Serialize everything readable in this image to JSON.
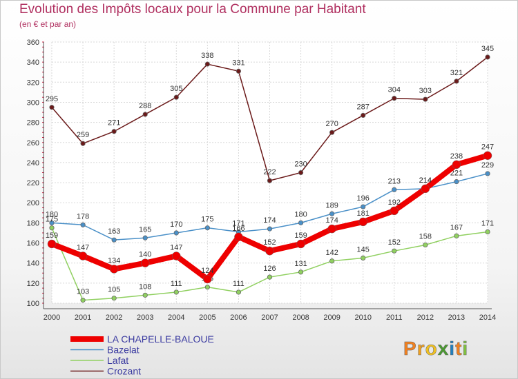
{
  "title": "Evolution des Impôts locaux pour la Commune par Habitant",
  "subtitle": "(en € et par an)",
  "brand": {
    "letters": [
      "P",
      "r",
      "o",
      "x",
      "i",
      "t",
      "i"
    ],
    "colors": [
      "#f08020",
      "#f0a020",
      "#f0c020",
      "#4a9a30",
      "#2080c0",
      "#f08020",
      "#80c040"
    ]
  },
  "chart_data": {
    "type": "line",
    "title": "Evolution des Impôts locaux pour la Commune par Habitant",
    "subtitle": "(en € et par an)",
    "xlabel": "",
    "ylabel": "",
    "categories": [
      "2000",
      "2001",
      "2002",
      "2003",
      "2004",
      "2005",
      "2006",
      "2007",
      "2008",
      "2009",
      "2010",
      "2011",
      "2012",
      "2013",
      "2014"
    ],
    "ylim": [
      100,
      360
    ],
    "yticks": [
      100,
      120,
      140,
      160,
      180,
      200,
      220,
      240,
      260,
      280,
      300,
      320,
      340,
      360
    ],
    "grid": true,
    "legend_position": "bottom-left",
    "series": [
      {
        "name": "Crozant",
        "color": "#6b1a1a",
        "values": [
          295,
          259,
          271,
          288,
          305,
          338,
          331,
          222,
          230,
          270,
          287,
          304,
          303,
          321,
          345
        ]
      },
      {
        "name": "Bazelat",
        "color": "#4a90c8",
        "values": [
          180,
          178,
          163,
          165,
          170,
          175,
          171,
          174,
          180,
          189,
          196,
          213,
          214,
          221,
          229
        ]
      },
      {
        "name": "Lafat",
        "color": "#90d060",
        "values": [
          175,
          103,
          105,
          108,
          111,
          116,
          111,
          126,
          131,
          142,
          145,
          152,
          158,
          167,
          171
        ]
      },
      {
        "name": "LA CHAPELLE-BALOUE",
        "color": "#ee0000",
        "values": [
          159,
          147,
          134,
          140,
          147,
          124,
          166,
          152,
          159,
          174,
          181,
          192,
          214,
          238,
          247
        ]
      }
    ],
    "legend": [
      "LA CHAPELLE-BALOUE",
      "Bazelat",
      "Lafat",
      "Crozant"
    ]
  }
}
